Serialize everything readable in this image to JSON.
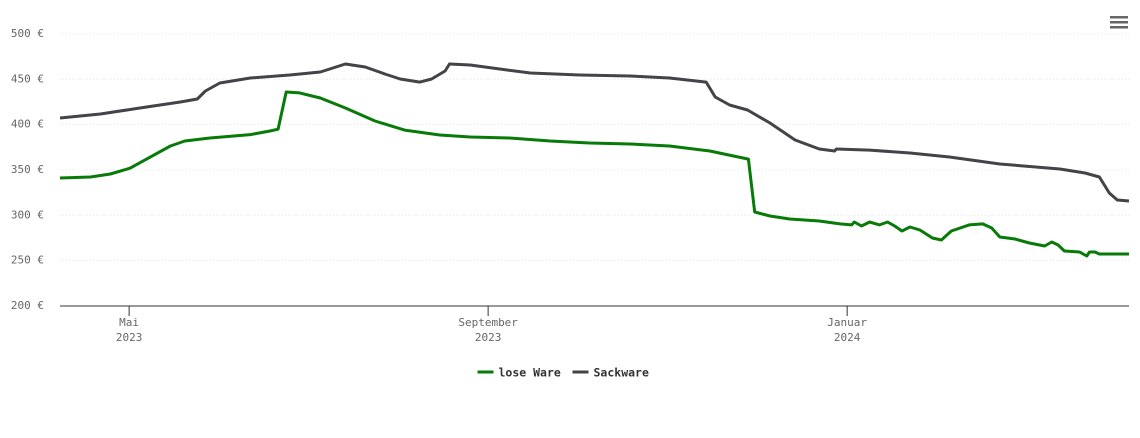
{
  "chart_data": {
    "type": "line",
    "xlim": [
      4.23,
      16.14
    ],
    "xticks": [
      {
        "value": 5,
        "label": "Mai 2023"
      },
      {
        "value": 9,
        "label": "September 2023"
      },
      {
        "value": 13,
        "label": "Januar 2024"
      }
    ],
    "ylim": [
      200,
      500
    ],
    "yticks": [
      {
        "value": 200,
        "label": "200 €"
      },
      {
        "value": 250,
        "label": "250 €"
      },
      {
        "value": 300,
        "label": "300 €"
      },
      {
        "value": 350,
        "label": "350 €"
      },
      {
        "value": 400,
        "label": "400 €"
      },
      {
        "value": 450,
        "label": "450 €"
      },
      {
        "value": 500,
        "label": "500 €"
      }
    ],
    "grid": true,
    "legend": "bottom",
    "series": [
      {
        "name": "lose Ware",
        "color": "#087a08",
        "x": [
          4.23,
          4.57,
          4.79,
          5.01,
          5.23,
          5.46,
          5.62,
          5.9,
          6.35,
          6.57,
          6.66,
          6.75,
          6.9,
          7.13,
          7.41,
          7.74,
          8.07,
          8.46,
          8.8,
          9.24,
          9.69,
          10.13,
          10.58,
          11.02,
          11.47,
          11.9,
          11.97,
          12.14,
          12.36,
          12.69,
          12.92,
          13.05,
          13.08,
          13.16,
          13.25,
          13.36,
          13.45,
          13.53,
          13.61,
          13.7,
          13.81,
          13.95,
          14.05,
          14.16,
          14.36,
          14.51,
          14.61,
          14.7,
          14.87,
          15.03,
          15.2,
          15.28,
          15.35,
          15.42,
          15.59,
          15.67,
          15.7,
          15.76,
          15.81,
          16.14
        ],
        "values": [
          341.2,
          342.3,
          345.6,
          352,
          364,
          376.5,
          382,
          385.3,
          389,
          393,
          395,
          436,
          435,
          429.4,
          418.4,
          404,
          394,
          388.6,
          386.4,
          385.3,
          382,
          379.8,
          378.7,
          376.5,
          371,
          362,
          303.7,
          299.3,
          296,
          293.8,
          290.5,
          289.4,
          292.6,
          288.2,
          292.6,
          289.4,
          292.6,
          288.2,
          282.7,
          287.1,
          283.8,
          275,
          272.8,
          282.7,
          289.4,
          290.5,
          286,
          276.1,
          273.9,
          269.5,
          266.2,
          270.6,
          267.3,
          260.7,
          259.6,
          255.2,
          259.6,
          259.6,
          257.4,
          257.4
        ]
      },
      {
        "name": "Sackware",
        "color": "#434348",
        "x": [
          4.23,
          4.68,
          5.12,
          5.57,
          5.76,
          5.85,
          6.01,
          6.35,
          6.79,
          7.13,
          7.41,
          7.63,
          7.85,
          8.02,
          8.24,
          8.37,
          8.52,
          8.57,
          8.8,
          9.13,
          9.47,
          10.02,
          10.58,
          11.02,
          11.43,
          11.53,
          11.69,
          11.89,
          12.14,
          12.42,
          12.69,
          12.86,
          12.88,
          13.25,
          13.7,
          14.14,
          14.7,
          15.37,
          15.65,
          15.81,
          15.92,
          16.01,
          16.14
        ],
        "values": [
          407.4,
          411.8,
          418.4,
          425,
          428.3,
          437.1,
          446,
          451.5,
          454.8,
          458.1,
          466.9,
          463.6,
          455.9,
          450.4,
          447,
          450.4,
          459.2,
          466.9,
          465.8,
          461.4,
          457,
          454.8,
          453.7,
          451.5,
          447,
          430.5,
          421.7,
          416.2,
          401.8,
          383.1,
          373.2,
          371,
          373.2,
          372,
          368.8,
          364.3,
          356.6,
          351.1,
          346.7,
          342.3,
          324.6,
          316.9,
          315.8
        ]
      }
    ]
  }
}
